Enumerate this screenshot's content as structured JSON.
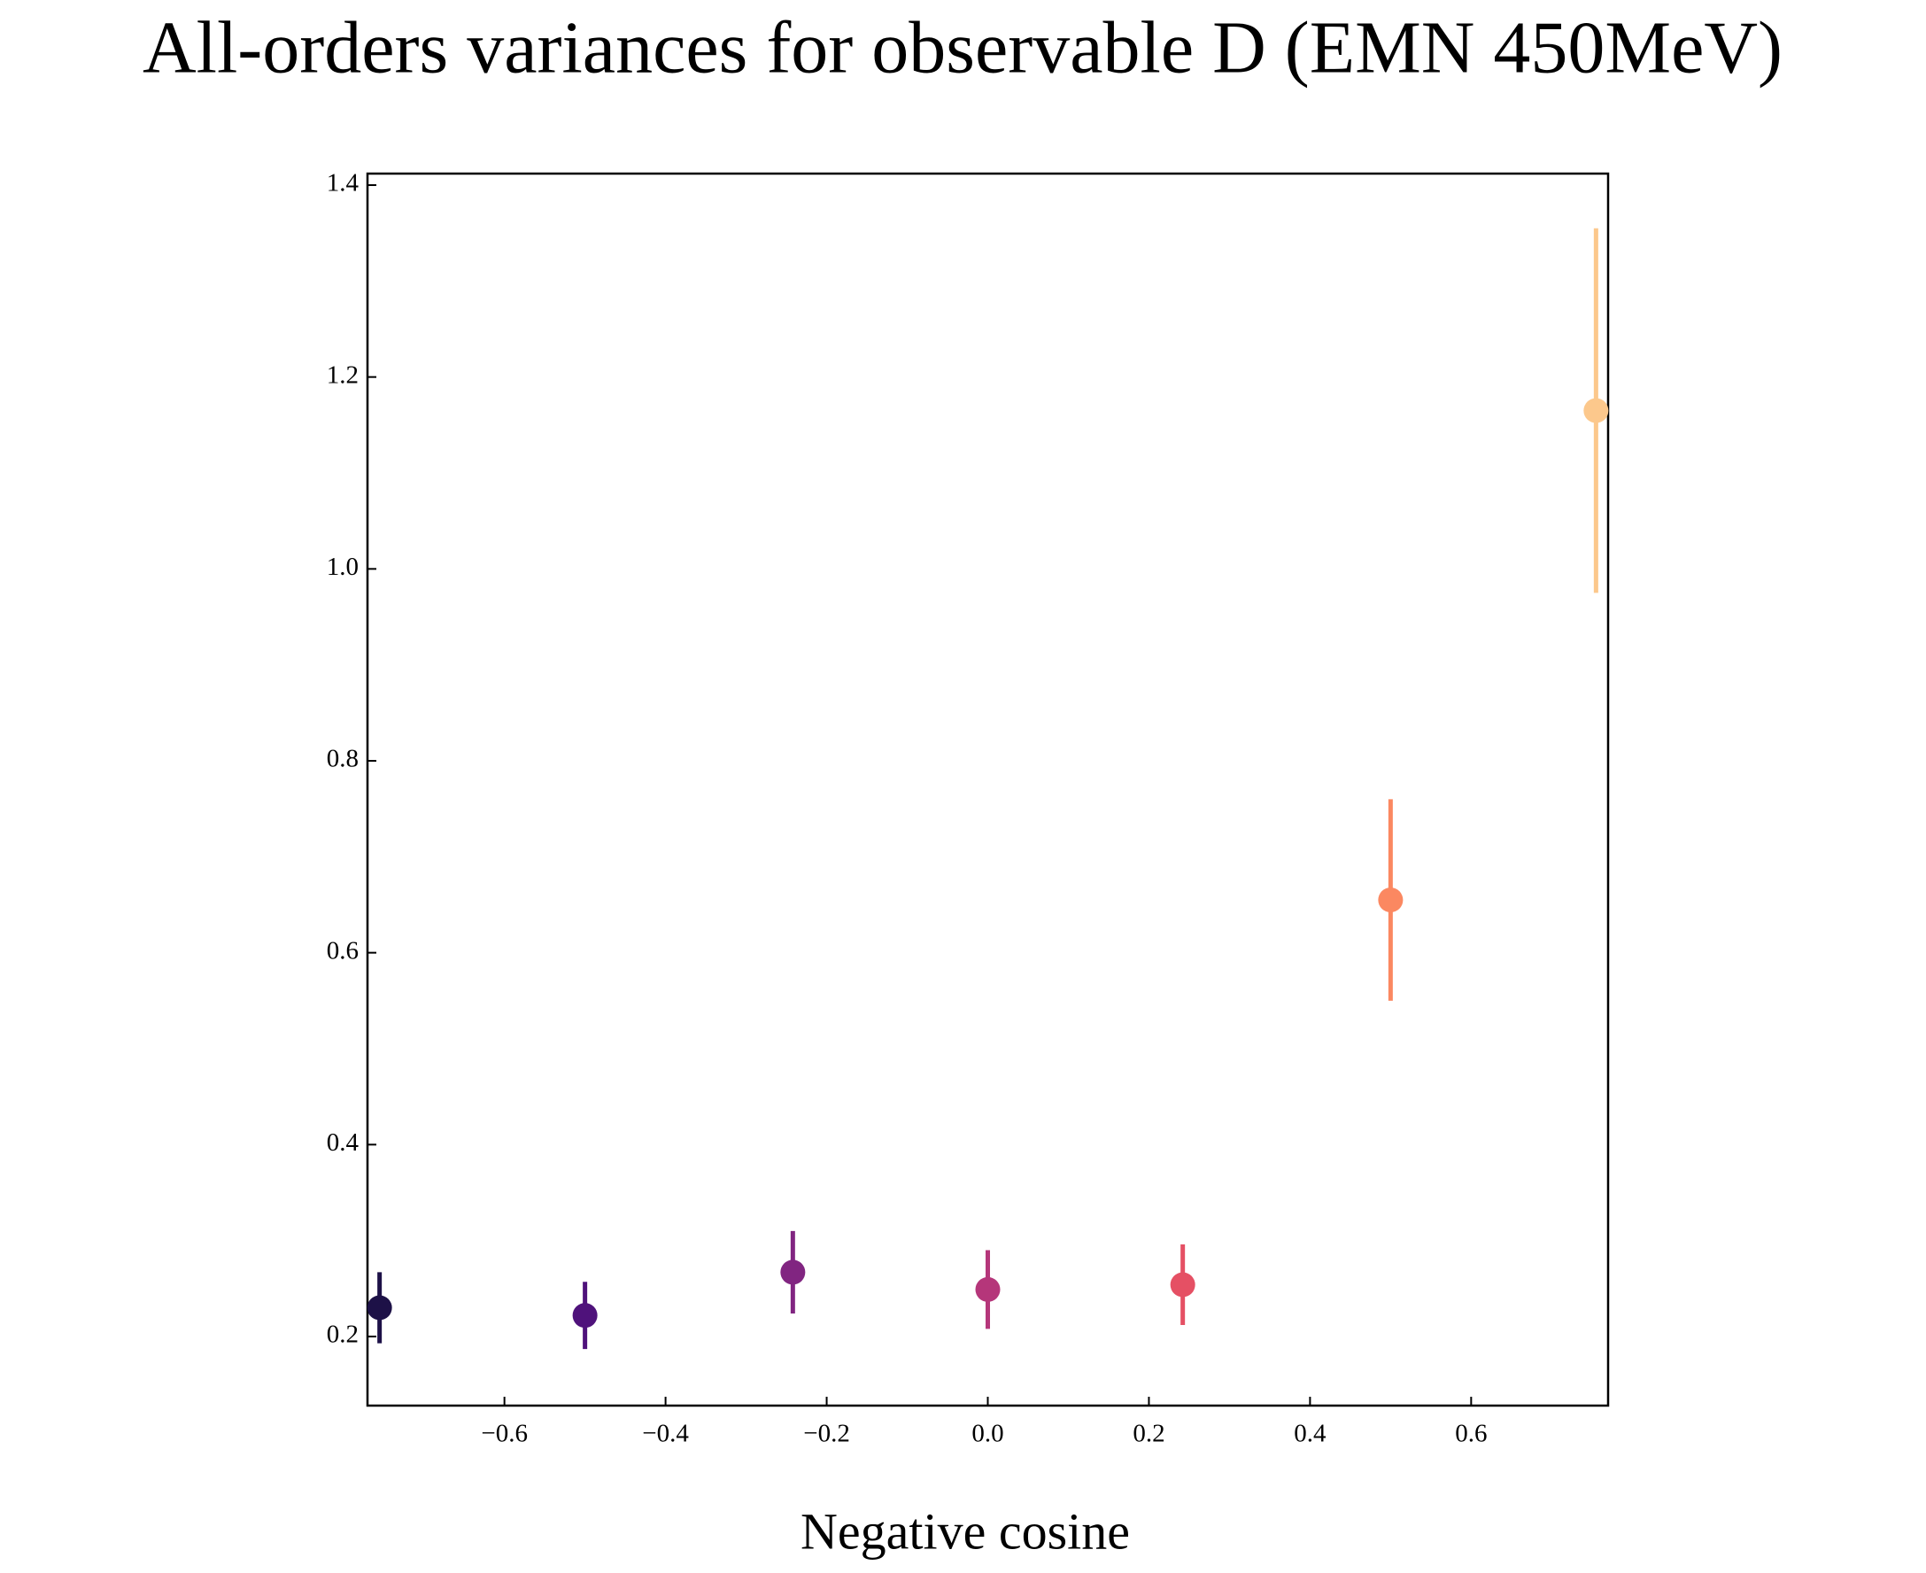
{
  "chart_data": {
    "type": "errorbar",
    "title": "All-orders variances for observable D (EMN 450MeV)",
    "x_label": "Negative cosine",
    "x": [
      -0.755,
      -0.5,
      -0.242,
      0,
      0.242,
      0.5,
      0.755
    ],
    "values": [
      0.23,
      0.222,
      0.267,
      0.249,
      0.254,
      0.655,
      1.165
    ],
    "errors": [
      0.037,
      0.035,
      0.043,
      0.041,
      0.042,
      0.105,
      0.19
    ],
    "colors": [
      "#1d1147",
      "#4f127b",
      "#812581",
      "#b5367a",
      "#e55064",
      "#fb8861",
      "#fcc88c"
    ],
    "xlim": [
      -0.77,
      0.77
    ],
    "ylim": [
      0.128,
      1.412
    ],
    "xticks": [
      {
        "value": -0.6,
        "label": "−0.6"
      },
      {
        "value": -0.4,
        "label": "−0.4"
      },
      {
        "value": -0.2,
        "label": "−0.2"
      },
      {
        "value": 0,
        "label": "0.0"
      },
      0.2,
      0.4,
      0.6
    ],
    "yticks": [
      0.2,
      0.4,
      0.6,
      0.8,
      {
        "value": 1,
        "label": "1.0"
      },
      1.2,
      1.4
    ]
  }
}
